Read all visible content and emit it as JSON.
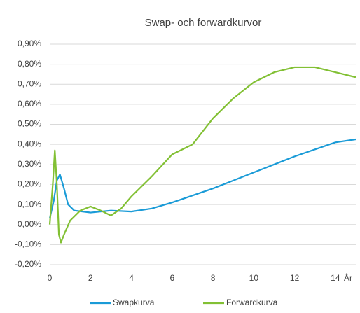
{
  "chart_data": {
    "type": "line",
    "title": "Swap- och forwardkurvor",
    "x_label": "År",
    "xlim": [
      0,
      15
    ],
    "xticks": [
      0,
      2,
      4,
      6,
      8,
      10,
      12,
      14
    ],
    "ylim": [
      -0.2,
      0.9
    ],
    "yticks": [
      {
        "value": -0.2,
        "label": "-0,20%"
      },
      {
        "value": -0.1,
        "label": "-0,10%"
      },
      {
        "value": 0,
        "label": "0,00%"
      },
      {
        "value": 0.1,
        "label": "0,10%"
      },
      {
        "value": 0.2,
        "label": "0,20%"
      },
      {
        "value": 0.3,
        "label": "0,30%"
      },
      {
        "value": 0.4,
        "label": "0,40%"
      },
      {
        "value": 0.5,
        "label": "0,50%"
      },
      {
        "value": 0.6,
        "label": "0,60%"
      },
      {
        "value": 0.7,
        "label": "0,70%"
      },
      {
        "value": 0.8,
        "label": "0,80%"
      },
      {
        "value": 0.9,
        "label": "0,90%"
      }
    ],
    "grid": true,
    "legend": "bottom",
    "series": [
      {
        "name": "Swapkurva",
        "color": "#1a9bd7",
        "x": [
          0,
          0.2,
          0.35,
          0.5,
          0.7,
          0.9,
          1.2,
          2,
          3,
          4,
          5,
          6,
          7,
          8,
          9,
          10,
          11,
          12,
          13,
          14,
          15
        ],
        "values": [
          0.03,
          0.12,
          0.22,
          0.25,
          0.18,
          0.1,
          0.07,
          0.06,
          0.07,
          0.065,
          0.08,
          0.11,
          0.145,
          0.18,
          0.22,
          0.26,
          0.3,
          0.34,
          0.375,
          0.41,
          0.425
        ]
      },
      {
        "name": "Forwardkurva",
        "color": "#82c034",
        "x": [
          0,
          0.15,
          0.25,
          0.35,
          0.45,
          0.55,
          0.7,
          1,
          1.5,
          2,
          2.5,
          3,
          3.5,
          4,
          5,
          6,
          7,
          8,
          9,
          10,
          11,
          12,
          13,
          14,
          15
        ],
        "values": [
          0,
          0.2,
          0.37,
          0.2,
          -0.05,
          -0.09,
          -0.05,
          0.02,
          0.07,
          0.09,
          0.07,
          0.045,
          0.08,
          0.14,
          0.24,
          0.35,
          0.4,
          0.53,
          0.63,
          0.71,
          0.76,
          0.785,
          0.785,
          0.76,
          0.735
        ]
      }
    ]
  }
}
